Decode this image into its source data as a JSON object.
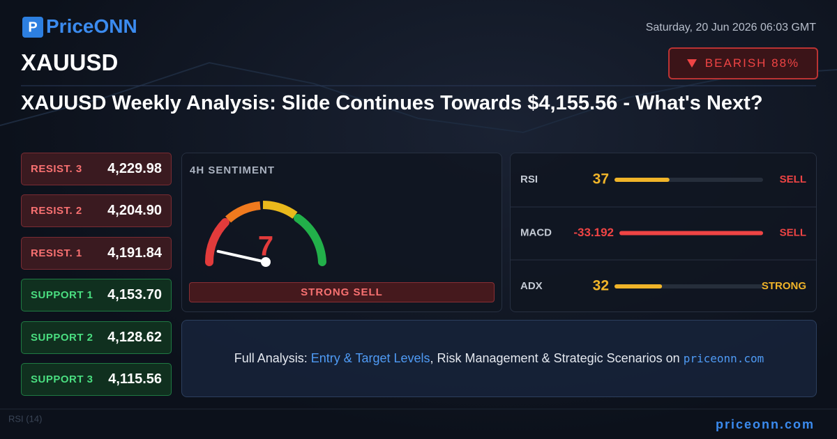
{
  "header": {
    "logo": "PriceONN",
    "symbol": "XAUUSD",
    "datetime": "Saturday, 20 Jun 2026 06:03 GMT",
    "badge": "BEARISH 88%"
  },
  "title": "XAUUSD Weekly Analysis: Slide Continues Towards $4,155.56 - What's Next?",
  "resistances": [
    {
      "label": "RESIST. 3",
      "value": "4,229.98"
    },
    {
      "label": "RESIST. 2",
      "value": "4,204.90"
    },
    {
      "label": "RESIST. 1",
      "value": "4,191.84"
    }
  ],
  "supports": [
    {
      "label": "SUPPORT 1",
      "value": "4,153.70"
    },
    {
      "label": "SUPPORT 2",
      "value": "4,128.62"
    },
    {
      "label": "SUPPORT 3",
      "value": "4,115.56"
    }
  ],
  "sentiment": {
    "title": "4H SENTIMENT",
    "value": 7,
    "range": [
      0,
      100
    ],
    "label": "STRONG SELL"
  },
  "indicators": {
    "range": [
      0,
      100
    ],
    "rows": [
      {
        "name": "RSI",
        "value": 37,
        "color": "#f0b429",
        "signal": "SELL",
        "signal_color": "#ef4444"
      },
      {
        "name": "MACD",
        "value": -33.192,
        "color": "#ef4444",
        "signal": "SELL",
        "signal_color": "#ef4444"
      },
      {
        "name": "ADX",
        "value": 32,
        "color": "#f0b429",
        "signal": "STRONG",
        "signal_color": "#f0b429"
      }
    ]
  },
  "footer": {
    "lead": "Full Analysis: ",
    "link1": "Entry & Target Levels",
    "middle": ", Risk Management & Strategic Scenarios on ",
    "link2": "priceonn.com"
  },
  "background_label": "RSI (14)",
  "brand": "priceonn.com"
}
